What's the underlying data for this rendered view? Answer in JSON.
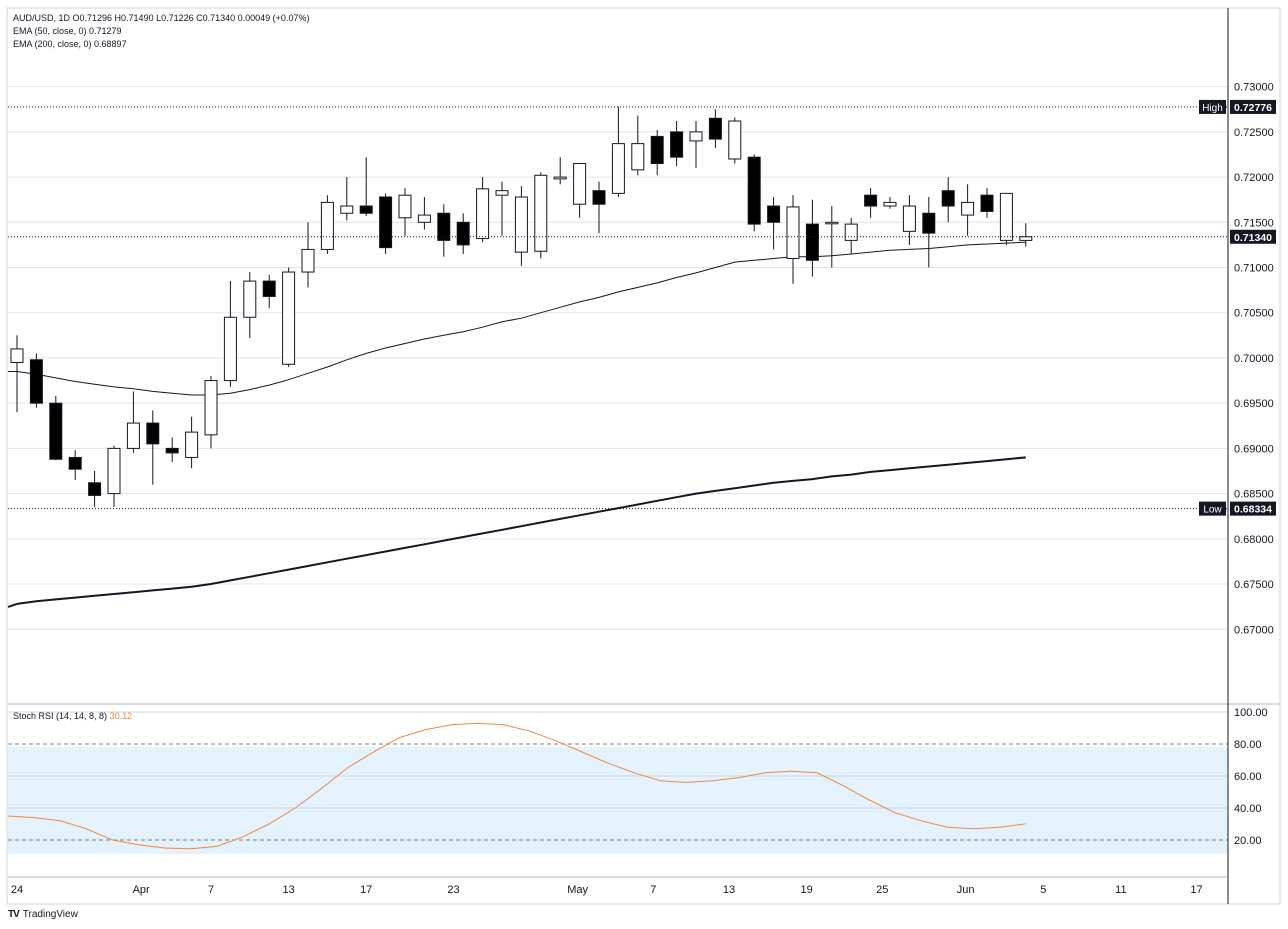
{
  "header": {
    "ohlc_line": "AUD/USD, 1D  O0.71296  H0.71490  L0.71226  C0.71340  0.00049 (+0.07%)",
    "ema50_line": "EMA (50, close, 0)  0.71279",
    "ema200_line": "EMA (200, close, 0)  0.68897"
  },
  "stoch": {
    "label": "Stoch RSI (14, 14, 8, 8)",
    "value": "30.12",
    "line_color": "#f0883e",
    "band_color": "#e3f2fd"
  },
  "brand": {
    "mark": "TV",
    "name": "TradingView"
  },
  "chart_data": {
    "type": "candlestick",
    "price_ticks": [
      "0.73000",
      "0.72500",
      "0.72000",
      "0.71500",
      "0.71000",
      "0.70500",
      "0.70000",
      "0.69500",
      "0.69000",
      "0.68500",
      "0.68000",
      "0.67500",
      "0.67000"
    ],
    "price_range": [
      0.6645,
      0.7335
    ],
    "high_marker": {
      "label": "High",
      "value": "0.72776"
    },
    "low_marker": {
      "label": "Low",
      "value": "0.68334"
    },
    "last_price": "0.71340",
    "x_ticks": [
      {
        "label": "24",
        "i": 0
      },
      {
        "label": "Apr",
        "i": 6.4
      },
      {
        "label": "7",
        "i": 10
      },
      {
        "label": "13",
        "i": 14
      },
      {
        "label": "17",
        "i": 18
      },
      {
        "label": "23",
        "i": 22.5
      },
      {
        "label": "May",
        "i": 28.9
      },
      {
        "label": "7",
        "i": 32.8
      },
      {
        "label": "13",
        "i": 36.7
      },
      {
        "label": "19",
        "i": 40.7
      },
      {
        "label": "25",
        "i": 44.6
      },
      {
        "label": "Jun",
        "i": 48.9
      },
      {
        "label": "5",
        "i": 52.9
      },
      {
        "label": "11",
        "i": 56.9
      },
      {
        "label": "17",
        "i": 60.8
      }
    ],
    "candles": [
      [
        0.6995,
        0.7025,
        0.694,
        0.701
      ],
      [
        0.6998,
        0.7005,
        0.6945,
        0.695
      ],
      [
        0.695,
        0.6958,
        0.6887,
        0.6888
      ],
      [
        0.689,
        0.6898,
        0.6865,
        0.6877
      ],
      [
        0.6862,
        0.6875,
        0.6835,
        0.6848
      ],
      [
        0.685,
        0.6903,
        0.6835,
        0.69
      ],
      [
        0.69,
        0.6963,
        0.6895,
        0.6928
      ],
      [
        0.6928,
        0.6942,
        0.686,
        0.6905
      ],
      [
        0.69,
        0.6912,
        0.6885,
        0.6895
      ],
      [
        0.689,
        0.6935,
        0.6878,
        0.6918
      ],
      [
        0.6915,
        0.698,
        0.69,
        0.6975
      ],
      [
        0.6975,
        0.7085,
        0.6968,
        0.7045
      ],
      [
        0.7045,
        0.7095,
        0.7022,
        0.7085
      ],
      [
        0.7085,
        0.7092,
        0.7055,
        0.7068
      ],
      [
        0.6993,
        0.71,
        0.699,
        0.7095
      ],
      [
        0.7095,
        0.715,
        0.7078,
        0.712
      ],
      [
        0.712,
        0.718,
        0.7115,
        0.7172
      ],
      [
        0.716,
        0.72,
        0.7152,
        0.7168
      ],
      [
        0.7168,
        0.7222,
        0.7157,
        0.716
      ],
      [
        0.7178,
        0.7182,
        0.7115,
        0.7122
      ],
      [
        0.7155,
        0.7188,
        0.7135,
        0.718
      ],
      [
        0.715,
        0.7178,
        0.7142,
        0.7158
      ],
      [
        0.716,
        0.717,
        0.7112,
        0.713
      ],
      [
        0.715,
        0.716,
        0.7115,
        0.7125
      ],
      [
        0.7132,
        0.72,
        0.7128,
        0.7187
      ],
      [
        0.718,
        0.7195,
        0.7135,
        0.7185
      ],
      [
        0.7117,
        0.719,
        0.7102,
        0.7178
      ],
      [
        0.7118,
        0.7205,
        0.711,
        0.7202
      ],
      [
        0.7198,
        0.7222,
        0.7192,
        0.72
      ],
      [
        0.717,
        0.7215,
        0.7155,
        0.7215
      ],
      [
        0.7185,
        0.7195,
        0.7138,
        0.717
      ],
      [
        0.7182,
        0.7278,
        0.7178,
        0.7237
      ],
      [
        0.7208,
        0.7268,
        0.7202,
        0.7237
      ],
      [
        0.7245,
        0.7252,
        0.7202,
        0.7215
      ],
      [
        0.725,
        0.7262,
        0.7212,
        0.7222
      ],
      [
        0.724,
        0.7262,
        0.721,
        0.725
      ],
      [
        0.7265,
        0.7275,
        0.7232,
        0.7242
      ],
      [
        0.722,
        0.7266,
        0.7215,
        0.7262
      ],
      [
        0.7222,
        0.7225,
        0.714,
        0.7148
      ],
      [
        0.7168,
        0.7178,
        0.712,
        0.715
      ],
      [
        0.711,
        0.718,
        0.7082,
        0.7167
      ],
      [
        0.7148,
        0.7175,
        0.709,
        0.7108
      ],
      [
        0.715,
        0.7168,
        0.71,
        0.715
      ],
      [
        0.713,
        0.7155,
        0.7115,
        0.7148
      ],
      [
        0.718,
        0.7188,
        0.7155,
        0.7168
      ],
      [
        0.7168,
        0.7178,
        0.7165,
        0.7172
      ],
      [
        0.714,
        0.718,
        0.7125,
        0.7168
      ],
      [
        0.716,
        0.7178,
        0.71,
        0.7138
      ],
      [
        0.7185,
        0.72,
        0.715,
        0.7168
      ],
      [
        0.7158,
        0.7192,
        0.7135,
        0.7172
      ],
      [
        0.718,
        0.7188,
        0.7155,
        0.7162
      ],
      [
        0.713,
        0.7182,
        0.7125,
        0.7182
      ],
      [
        0.713,
        0.7149,
        0.7123,
        0.7134
      ]
    ],
    "ema50": [
      0.6985,
      0.6982,
      0.6978,
      0.6974,
      0.6971,
      0.6968,
      0.6966,
      0.6963,
      0.6961,
      0.6959,
      0.6959,
      0.6961,
      0.6965,
      0.697,
      0.6976,
      0.6983,
      0.699,
      0.6998,
      0.7005,
      0.7011,
      0.7016,
      0.7021,
      0.7025,
      0.7029,
      0.7034,
      0.704,
      0.7044,
      0.705,
      0.7056,
      0.7062,
      0.7067,
      0.7073,
      0.7078,
      0.7083,
      0.7089,
      0.7094,
      0.71,
      0.7106,
      0.7108,
      0.711,
      0.7112,
      0.7112,
      0.7113,
      0.7115,
      0.7117,
      0.7119,
      0.712,
      0.7121,
      0.7123,
      0.7125,
      0.7126,
      0.7127,
      0.7128
    ],
    "ema200": [
      0.6728,
      0.6731,
      0.6733,
      0.6735,
      0.6737,
      0.6739,
      0.6741,
      0.6743,
      0.6745,
      0.6747,
      0.675,
      0.6754,
      0.6758,
      0.6762,
      0.6766,
      0.677,
      0.6774,
      0.6778,
      0.6782,
      0.6786,
      0.679,
      0.6794,
      0.6798,
      0.6802,
      0.6806,
      0.681,
      0.6814,
      0.6818,
      0.6822,
      0.6826,
      0.683,
      0.6834,
      0.6838,
      0.6842,
      0.6846,
      0.685,
      0.6853,
      0.6856,
      0.6859,
      0.6862,
      0.6864,
      0.6866,
      0.6869,
      0.6871,
      0.6874,
      0.6876,
      0.6878,
      0.688,
      0.6882,
      0.6884,
      0.6886,
      0.6888,
      0.689
    ],
    "stoch_ticks": [
      "100.00",
      "80.00",
      "60.00",
      "40.00",
      "20.00"
    ],
    "stoch_range": [
      0,
      100
    ],
    "stoch_values": [
      35,
      34,
      32,
      27,
      20,
      17,
      15,
      14.5,
      16,
      22,
      30,
      40,
      52,
      65,
      75,
      84,
      89,
      92,
      93,
      92,
      88,
      82,
      75,
      68,
      62,
      57,
      56,
      57,
      59,
      62,
      63,
      62,
      54,
      45,
      37,
      32,
      28,
      27,
      28,
      30.12
    ]
  }
}
